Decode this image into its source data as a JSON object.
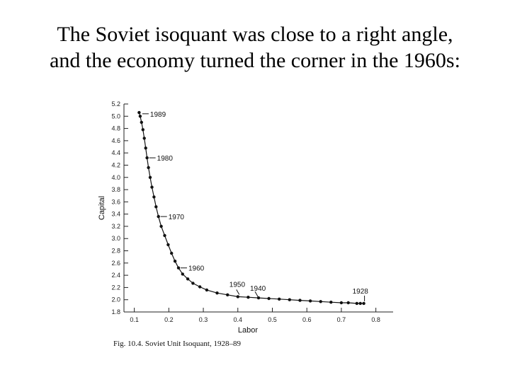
{
  "slide": {
    "title_line1": "The Soviet isoquant was close to a right angle,",
    "title_line2": "and the economy turned the corner in the 1960s:",
    "caption": "Fig. 10.4. Soviet Unit Isoquant, 1928–89"
  },
  "chart_data": {
    "type": "scatter",
    "title": "",
    "xlabel": "Labor",
    "ylabel": "Capital",
    "xlim": [
      0.07,
      0.85
    ],
    "ylim": [
      1.8,
      5.2
    ],
    "xticks": [
      0.1,
      0.2,
      0.3,
      0.4,
      0.5,
      0.6,
      0.7,
      0.8
    ],
    "xtick_labels": [
      "0.1",
      "0.2",
      "0.3",
      "0.4",
      "0.5",
      "0.6",
      "0.7",
      "0.8"
    ],
    "yticks": [
      1.8,
      2.0,
      2.2,
      2.4,
      2.6,
      2.8,
      3.0,
      3.2,
      3.4,
      3.6,
      3.8,
      4.0,
      4.2,
      4.4,
      4.6,
      4.8,
      5.0,
      5.2
    ],
    "ytick_labels": [
      "1.8",
      "2.0",
      "2.2",
      "2.4",
      "2.6",
      "2.8",
      "3.0",
      "3.2",
      "3.4",
      "3.6",
      "3.8",
      "4.0",
      "4.2",
      "4.4",
      "4.6",
      "4.8",
      "5.0",
      "5.2"
    ],
    "grid": false,
    "series": [
      {
        "points": [
          [
            0.765,
            1.94
          ],
          [
            0.755,
            1.94
          ],
          [
            0.745,
            1.94
          ],
          [
            0.72,
            1.95
          ],
          [
            0.7,
            1.95
          ],
          [
            0.67,
            1.96
          ],
          [
            0.64,
            1.97
          ],
          [
            0.61,
            1.98
          ],
          [
            0.58,
            1.99
          ],
          [
            0.55,
            2.0
          ],
          [
            0.52,
            2.01
          ],
          [
            0.49,
            2.02
          ],
          [
            0.46,
            2.03
          ],
          [
            0.43,
            2.04
          ],
          [
            0.4,
            2.05
          ],
          [
            0.37,
            2.08
          ],
          [
            0.34,
            2.11
          ],
          [
            0.31,
            2.16
          ],
          [
            0.29,
            2.21
          ],
          [
            0.27,
            2.27
          ],
          [
            0.255,
            2.34
          ],
          [
            0.24,
            2.42
          ],
          [
            0.228,
            2.52
          ],
          [
            0.218,
            2.63
          ],
          [
            0.208,
            2.76
          ],
          [
            0.198,
            2.9
          ],
          [
            0.188,
            3.05
          ],
          [
            0.178,
            3.2
          ],
          [
            0.17,
            3.36
          ],
          [
            0.163,
            3.52
          ],
          [
            0.157,
            3.68
          ],
          [
            0.151,
            3.84
          ],
          [
            0.146,
            4.0
          ],
          [
            0.141,
            4.16
          ],
          [
            0.137,
            4.32
          ],
          [
            0.133,
            4.48
          ],
          [
            0.129,
            4.64
          ],
          [
            0.125,
            4.78
          ],
          [
            0.121,
            4.9
          ],
          [
            0.117,
            5.0
          ],
          [
            0.114,
            5.06
          ]
        ]
      }
    ],
    "annotations": [
      {
        "text": "1989",
        "x": 0.117,
        "y": 5.04
      },
      {
        "text": "1980",
        "x": 0.137,
        "y": 4.32
      },
      {
        "text": "1970",
        "x": 0.17,
        "y": 3.36
      },
      {
        "text": "1960",
        "x": 0.228,
        "y": 2.52
      },
      {
        "text": "1950",
        "x": 0.4,
        "y": 2.05
      },
      {
        "text": "1940",
        "x": 0.46,
        "y": 2.03
      },
      {
        "text": "1928",
        "x": 0.765,
        "y": 1.94
      }
    ]
  }
}
